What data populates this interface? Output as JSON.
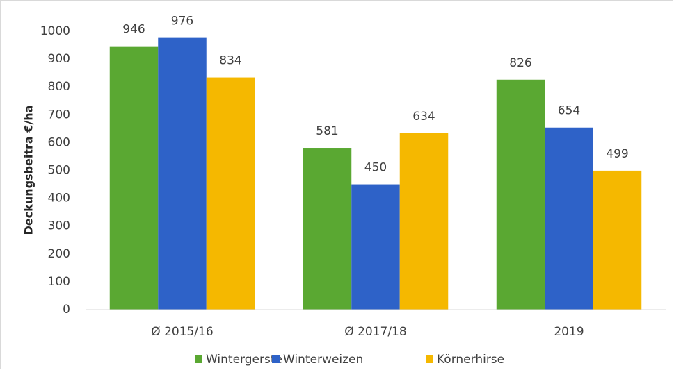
{
  "chart_data": {
    "type": "bar",
    "y_label": "Deckungsbeitra €/ha",
    "categories": [
      "Ø 2015/16",
      "Ø 2017/18",
      "2019"
    ],
    "series": [
      {
        "name": "Wintergerste",
        "color": "#5aa832",
        "values": [
          946,
          581,
          826
        ]
      },
      {
        "name": "Winterweizen",
        "color": "#2e62c8",
        "values": [
          976,
          450,
          654
        ]
      },
      {
        "name": "Körnerhirse",
        "color": "#f5b800",
        "values": [
          834,
          634,
          499
        ]
      }
    ],
    "ylim": [
      0,
      1000
    ],
    "yticks": [
      0,
      100,
      200,
      300,
      400,
      500,
      600,
      700,
      800,
      900,
      1000
    ],
    "grid": false,
    "legend": "bottom",
    "data_labels": true
  }
}
